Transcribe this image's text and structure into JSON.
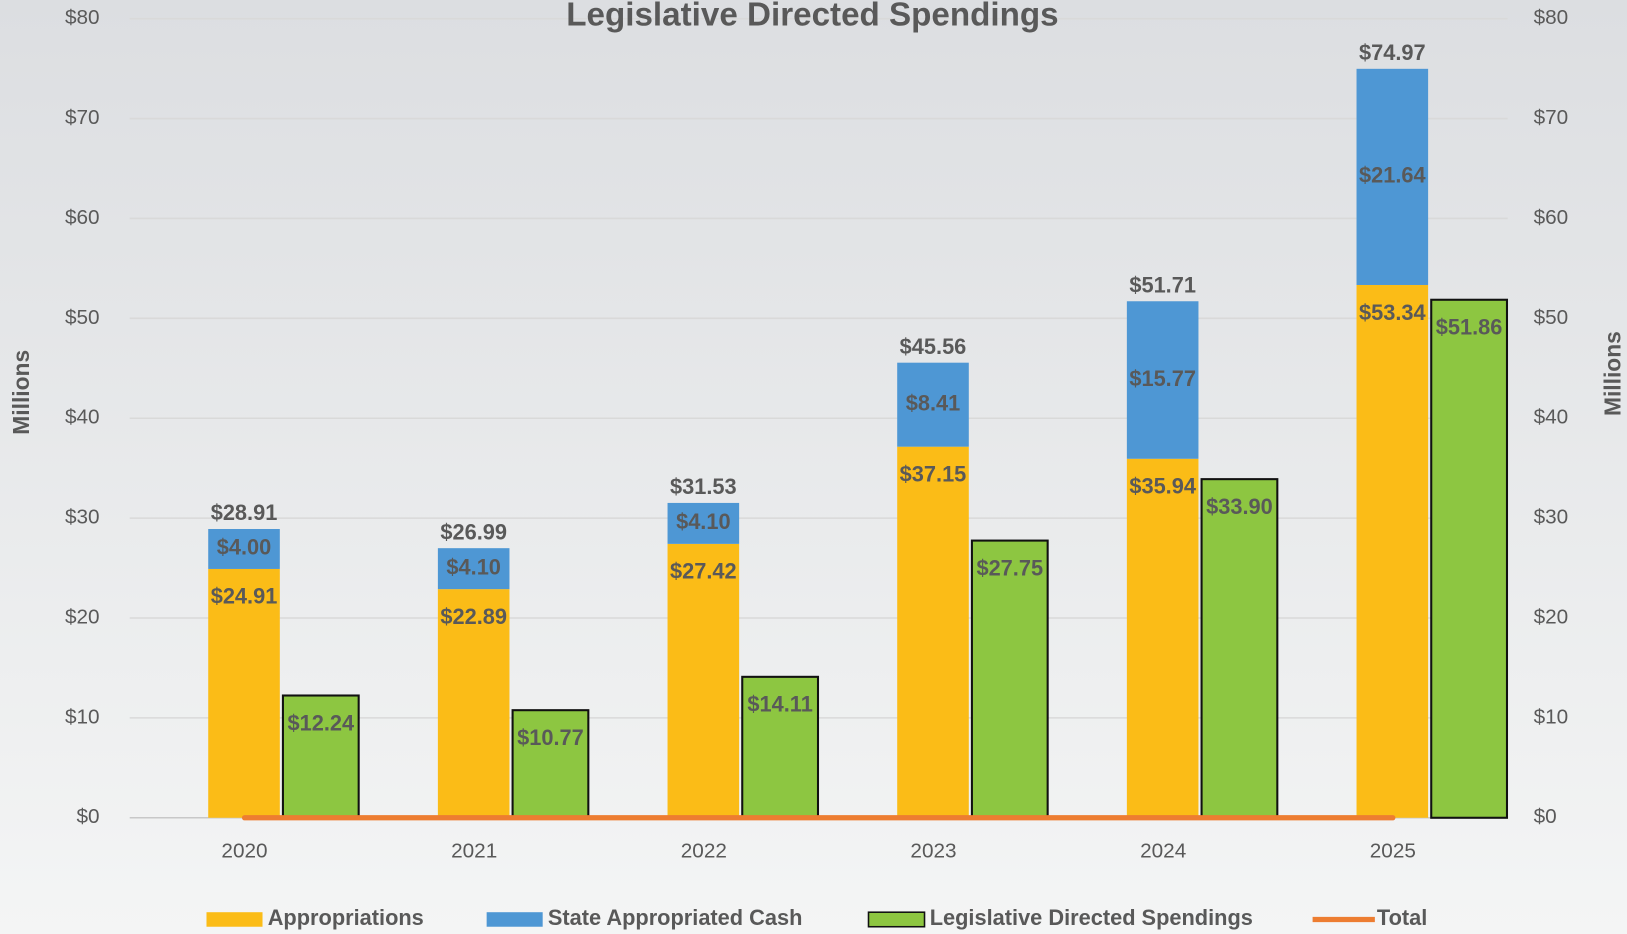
{
  "chart_data": {
    "type": "bar",
    "title": "Legislative Directed Spendings",
    "y_label": "Millions",
    "y2_label": "Millions",
    "categories": [
      "2020",
      "2021",
      "2022",
      "2023",
      "2024",
      "2025"
    ],
    "series": [
      {
        "name": "Appropriations",
        "type": "bar",
        "stacked": true,
        "color": "#fbbc17",
        "values": [
          24.91,
          22.89,
          27.42,
          37.15,
          35.94,
          53.34
        ],
        "value_labels": [
          "$24.91",
          "$22.89",
          "$27.42",
          "$37.15",
          "$35.94",
          "$53.34"
        ]
      },
      {
        "name": "State Appropriated Cash",
        "type": "bar",
        "stacked": true,
        "color": "#4e97d4",
        "values": [
          4.0,
          4.1,
          4.1,
          8.41,
          15.77,
          21.64
        ],
        "value_labels": [
          "$4.00",
          "$4.10",
          "$4.10",
          "$8.41",
          "$15.77",
          "$21.64"
        ]
      },
      {
        "name": "Legislative Directed Spendings",
        "type": "bar",
        "stacked": false,
        "color": "#8dc641",
        "values": [
          12.24,
          10.77,
          14.11,
          27.75,
          33.9,
          51.86
        ],
        "value_labels": [
          "$12.24",
          "$10.77",
          "$14.11",
          "$27.75",
          "$33.90",
          "$51.86"
        ]
      },
      {
        "name": "Total",
        "type": "line",
        "color": "#ed7d31",
        "values": [
          0,
          0,
          0,
          0,
          0,
          0
        ]
      }
    ],
    "annotations": [
      "$28.91",
      "$26.99",
      "$31.53",
      "$45.56",
      "$51.71",
      "$74.97"
    ],
    "ylim": [
      0,
      80
    ],
    "yticks": [
      {
        "value": 0,
        "label": "$0"
      },
      {
        "value": 10,
        "label": "$10"
      },
      {
        "value": 20,
        "label": "$20"
      },
      {
        "value": 30,
        "label": "$30"
      },
      {
        "value": 40,
        "label": "$40"
      },
      {
        "value": 50,
        "label": "$50"
      },
      {
        "value": 60,
        "label": "$60"
      },
      {
        "value": 70,
        "label": "$70"
      },
      {
        "value": 80,
        "label": "$80"
      }
    ],
    "y2lim": [
      0,
      80
    ],
    "y2ticks": [
      {
        "value": 0,
        "label": "$0"
      },
      {
        "value": 10,
        "label": "$10"
      },
      {
        "value": 20,
        "label": "$20"
      },
      {
        "value": 30,
        "label": "$30"
      },
      {
        "value": 40,
        "label": "$40"
      },
      {
        "value": 50,
        "label": "$50"
      },
      {
        "value": 60,
        "label": "$60"
      },
      {
        "value": 70,
        "label": "$70"
      },
      {
        "value": 80,
        "label": "$80"
      }
    ],
    "grid": true,
    "legend": "bottom"
  }
}
